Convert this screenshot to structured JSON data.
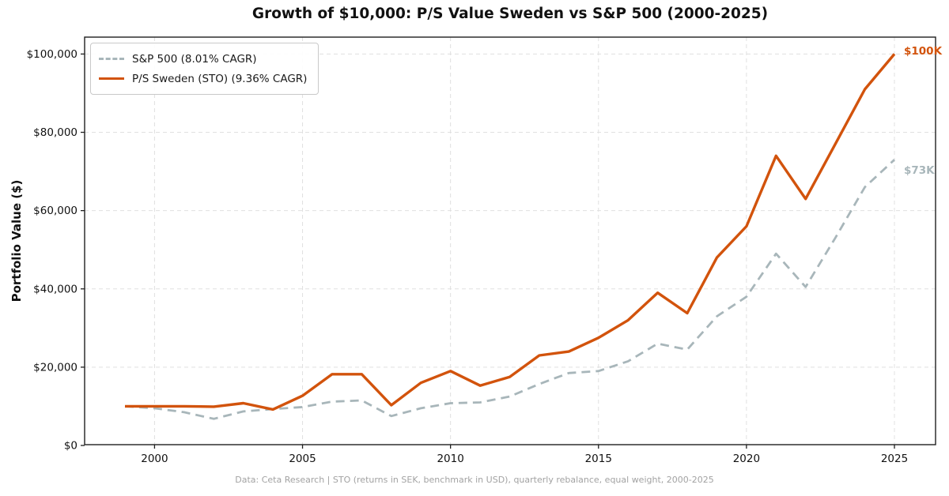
{
  "title": "Growth of $10,000: P/S Value Sweden vs S&P 500 (2000-2025)",
  "caption": "Data: Ceta Research | STO (returns in SEK, benchmark in USD), quarterly rebalance, equal weight, 2000-2025",
  "colors": {
    "sp500": "#a8b6ba",
    "sweden": "#d2530c",
    "grid": "#e0e0e0",
    "spine": "#1f1f1f",
    "tick_text": "#111111",
    "caption_text": "#a2a2a2"
  },
  "chart_data": {
    "type": "line",
    "title": "Growth of $10,000: P/S Value Sweden vs S&P 500 (2000-2025)",
    "xlabel": "",
    "ylabel": "Portfolio Value ($)",
    "x": [
      1999,
      2000,
      2001,
      2002,
      2003,
      2004,
      2005,
      2006,
      2007,
      2008,
      2009,
      2010,
      2011,
      2012,
      2013,
      2014,
      2015,
      2016,
      2017,
      2018,
      2019,
      2020,
      2021,
      2022,
      2023,
      2024,
      2025
    ],
    "series": [
      {
        "name": "S&P 500 (8.01% CAGR)",
        "color": "#a8b6ba",
        "style": "dashed",
        "end_label": "$73K",
        "values": [
          10000,
          9500,
          8500,
          6800,
          8700,
          9300,
          9800,
          11200,
          11500,
          7500,
          9500,
          10800,
          11000,
          12500,
          15700,
          18500,
          19000,
          21500,
          26000,
          24500,
          33000,
          38000,
          49000,
          40500,
          53000,
          66000,
          73000
        ]
      },
      {
        "name": "P/S Sweden (STO) (9.36% CAGR)",
        "color": "#d2530c",
        "style": "solid",
        "end_label": "$100K",
        "values": [
          10000,
          10000,
          10000,
          9900,
          10800,
          9200,
          12700,
          18200,
          18200,
          10300,
          16000,
          19000,
          15300,
          17500,
          23000,
          24000,
          27500,
          32000,
          39000,
          33800,
          48000,
          56000,
          74000,
          63000,
          77000,
          91000,
          100000
        ]
      }
    ],
    "x_ticks": [
      2000,
      2005,
      2010,
      2015,
      2020,
      2025
    ],
    "y_ticks": [
      {
        "value": 0,
        "label": "$0"
      },
      {
        "value": 20000,
        "label": "$20,000"
      },
      {
        "value": 40000,
        "label": "$40,000"
      },
      {
        "value": 60000,
        "label": "$60,000"
      },
      {
        "value": 80000,
        "label": "$80,000"
      },
      {
        "value": 100000,
        "label": "$100,000"
      }
    ],
    "ylim": [
      0,
      104000
    ],
    "xlim": [
      1997.6,
      2026.4
    ],
    "grid": true,
    "legend_position": "upper-left"
  }
}
